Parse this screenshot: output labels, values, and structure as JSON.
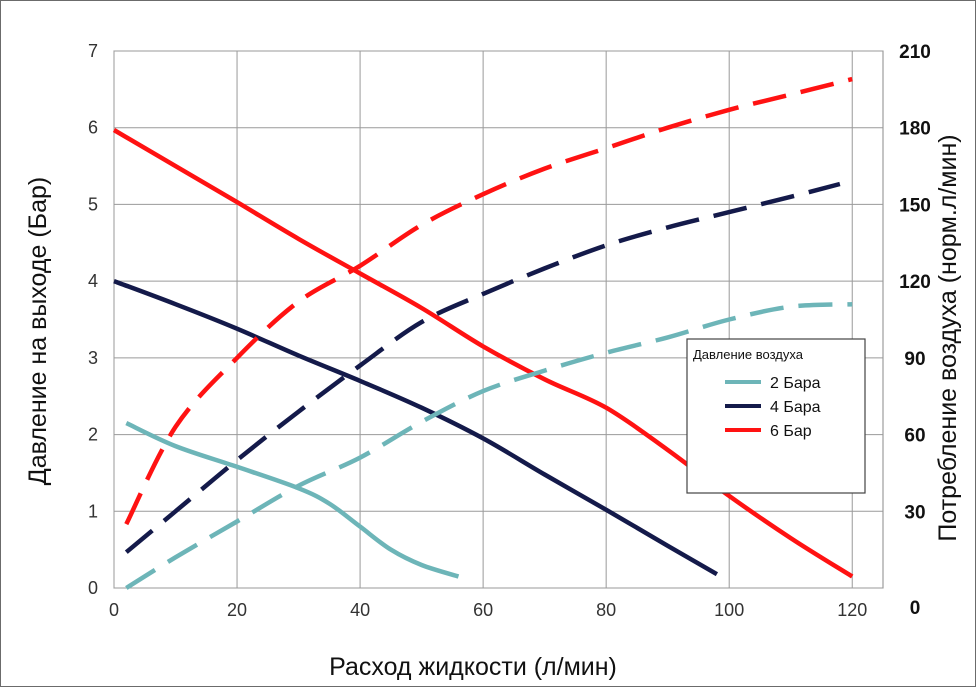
{
  "chart_data": {
    "type": "line",
    "xlabel": "Расход жидкости (л/мин)",
    "ylabel_left": "Давление на выходе (Бар)",
    "ylabel_right": "Потребление воздуха (норм.л/мин)",
    "xlim": [
      0,
      125
    ],
    "ylim_left": [
      0,
      7
    ],
    "ylim_right": [
      0,
      210
    ],
    "x_ticks": [
      "0",
      "20",
      "40",
      "60",
      "80",
      "100",
      "120"
    ],
    "y_ticks_left": [
      "0",
      "1",
      "2",
      "3",
      "4",
      "5",
      "6",
      "7"
    ],
    "y_ticks_right": [
      "0",
      "30",
      "60",
      "90",
      "120",
      "150",
      "180",
      "210"
    ],
    "grid": true,
    "legend": {
      "title": "Давление воздуха",
      "position": "center-right",
      "entries": [
        {
          "label": "2 Бара",
          "color": "#6db5b8"
        },
        {
          "label": "4 Бара",
          "color": "#141a4a"
        },
        {
          "label": "6 Бар",
          "color": "#ff1212"
        }
      ]
    },
    "series": [
      {
        "name": "2 Бара",
        "kind": "pressure",
        "axis": "left",
        "style": "solid",
        "color": "#6db5b8",
        "x": [
          2,
          10,
          20,
          30,
          35,
          40,
          45,
          50,
          56
        ],
        "y": [
          2.15,
          1.85,
          1.58,
          1.3,
          1.1,
          0.8,
          0.5,
          0.3,
          0.15
        ]
      },
      {
        "name": "4 Бара",
        "kind": "pressure",
        "axis": "left",
        "style": "solid",
        "color": "#141a4a",
        "x": [
          0,
          10,
          20,
          30,
          40,
          50,
          60,
          70,
          80,
          90,
          98
        ],
        "y": [
          4.0,
          3.7,
          3.38,
          3.03,
          2.7,
          2.35,
          1.95,
          1.48,
          1.02,
          0.55,
          0.18
        ]
      },
      {
        "name": "6 Бар",
        "kind": "pressure",
        "axis": "left",
        "style": "solid",
        "color": "#ff1212",
        "x": [
          0,
          10,
          20,
          30,
          40,
          50,
          60,
          70,
          80,
          90,
          100,
          110,
          120
        ],
        "y": [
          5.97,
          5.5,
          5.03,
          4.55,
          4.1,
          3.65,
          3.15,
          2.72,
          2.35,
          1.8,
          1.2,
          0.65,
          0.15
        ]
      },
      {
        "name": "2 Бара",
        "kind": "air",
        "axis": "right",
        "style": "dashed",
        "color": "#6db5b8",
        "x": [
          2,
          10,
          20,
          30,
          40,
          50,
          60,
          70,
          80,
          90,
          100,
          110,
          120
        ],
        "y": [
          0,
          12,
          26,
          40,
          51,
          65,
          77,
          85,
          92,
          98,
          105,
          110,
          111
        ]
      },
      {
        "name": "4 Бара",
        "kind": "air",
        "axis": "right",
        "style": "dashed",
        "color": "#141a4a",
        "x": [
          2,
          10,
          20,
          30,
          40,
          50,
          60,
          70,
          80,
          90,
          100,
          110,
          118
        ],
        "y": [
          14,
          30,
          50,
          69,
          87,
          104,
          115,
          125,
          134,
          141,
          147,
          153,
          158
        ]
      },
      {
        "name": "6 Бар",
        "kind": "air",
        "axis": "right",
        "style": "dashed",
        "color": "#ff1212",
        "x": [
          2,
          10,
          20,
          30,
          40,
          50,
          60,
          70,
          80,
          90,
          100,
          110,
          120
        ],
        "y": [
          25,
          63,
          90,
          112,
          126,
          142,
          154,
          164,
          172,
          180,
          187,
          193,
          199
        ]
      }
    ]
  }
}
